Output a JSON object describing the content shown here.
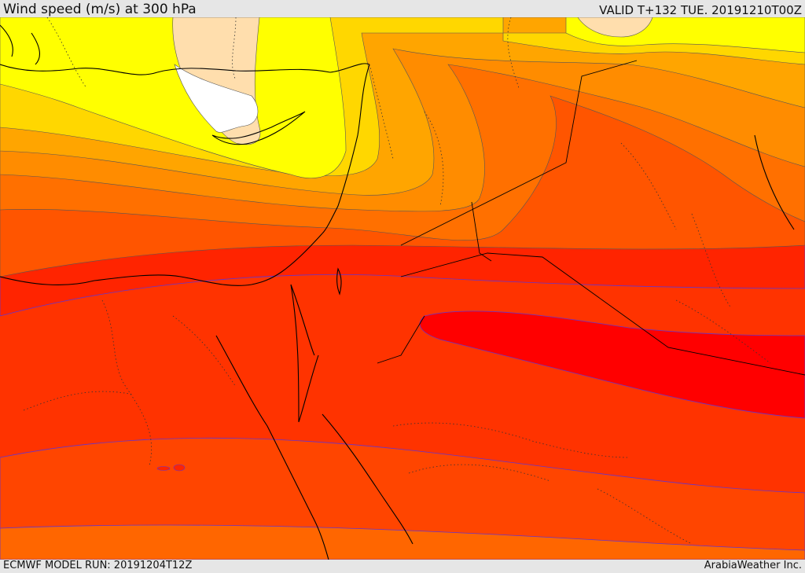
{
  "header": {
    "title": "Wind speed (m/s) at 300 hPa",
    "valid": "VALID T+132 TUE. 20191210T00Z"
  },
  "footer": {
    "model_run": "ECMWF MODEL RUN: 20191204T12Z",
    "credit": "ArabiaWeather Inc."
  },
  "map": {
    "field": "wind speed",
    "colors": {
      "lowest": "#ffffff",
      "very_low": "#ffdead",
      "low": "#ffff00",
      "low_mid": "#ffd700",
      "mid": "#ffa500",
      "mid_high": "#ff8c00",
      "high": "#ff6600",
      "very_high": "#ff4500",
      "strong": "#ff2400",
      "max": "#ff0000"
    }
  }
}
